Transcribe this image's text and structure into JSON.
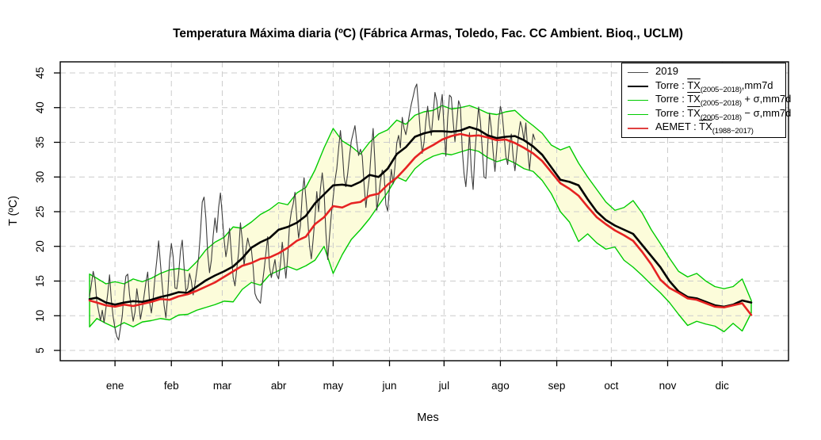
{
  "title": "Temperatura Máxima diaria (ºC) (Fábrica Armas, Toledo, Fac. CC Ambient. Bioq., UCLM)",
  "axes": {
    "x_label": "Mes",
    "y_label": "T (ºC)",
    "x_ticks": [
      "ene",
      "feb",
      "mar",
      "abr",
      "may",
      "jun",
      "jul",
      "ago",
      "sep",
      "oct",
      "nov",
      "dic"
    ],
    "y_ticks": [
      5,
      10,
      15,
      20,
      25,
      30,
      35,
      40,
      45
    ]
  },
  "colors": {
    "band_fill": "#FCFCDA",
    "grid": "#CCCCCC",
    "box": "#000000",
    "green": "#00CC00",
    "red": "#E62222",
    "black": "#000000",
    "gray2019": "#3C3C3C"
  },
  "legend": {
    "entries": [
      {
        "prefix": "",
        "tx": "",
        "sub": "",
        "suffix": "2019",
        "color": "#4d4d4d",
        "width": 1.5
      },
      {
        "prefix": "Torre : ",
        "tx": "TX",
        "sub": "(2005−2018)",
        "suffix": ",mm7d",
        "color": "#000000",
        "width": 2
      },
      {
        "prefix": "Torre : ",
        "tx": "TX",
        "sub": "(2005−2018)",
        "suffix": " + σ,mm7d",
        "color": "#00CC00",
        "width": 1.5
      },
      {
        "prefix": "Torre : ",
        "tx": "TX",
        "sub": "(2005−2018)",
        "suffix": " − σ,mm7d",
        "color": "#00CC00",
        "width": 1.5
      },
      {
        "prefix": "AEMET : ",
        "tx": "TX",
        "sub": "(1988−2017)",
        "suffix": "",
        "color": "#E04040",
        "width": 2
      }
    ]
  },
  "chart_data": {
    "type": "line",
    "title": "Temperatura Máxima diaria (ºC) (Fábrica Armas, Toledo, Fac. CC Ambient. Bioq., UCLM)",
    "xlabel": "Mes",
    "ylabel": "T (ºC)",
    "x_unit": "day_of_year",
    "xlim": [
      1,
      365
    ],
    "ylim": [
      5,
      45
    ],
    "grid": true,
    "legend_position": "top-right",
    "month_labels": [
      "ene",
      "feb",
      "mar",
      "abr",
      "may",
      "jun",
      "jul",
      "ago",
      "sep",
      "oct",
      "nov",
      "dic"
    ],
    "band": {
      "upper_id": "sigma_upper",
      "lower_id": "sigma_lower",
      "fill": "#FCFCDA"
    },
    "series": [
      {
        "id": "sigma_upper",
        "name": "Torre TX(2005-2018) + sigma, mm7d",
        "color": "#00CC00",
        "width": 1.4,
        "days": [
          1,
          5,
          10,
          15,
          20,
          25,
          30,
          35,
          40,
          45,
          50,
          55,
          60,
          65,
          70,
          75,
          80,
          85,
          90,
          95,
          100,
          105,
          110,
          115,
          120,
          125,
          130,
          135,
          140,
          145,
          150,
          155,
          160,
          165,
          170,
          175,
          180,
          185,
          190,
          195,
          200,
          205,
          210,
          215,
          220,
          225,
          230,
          235,
          240,
          245,
          250,
          255,
          260,
          265,
          270,
          275,
          280,
          285,
          290,
          295,
          300,
          305,
          310,
          315,
          320,
          325,
          330,
          335,
          340,
          345,
          350,
          355,
          360,
          365
        ],
        "values": [
          16.0,
          15.4,
          14.6,
          14.9,
          14.6,
          15.3,
          14.9,
          15.4,
          16.1,
          16.6,
          16.8,
          16.5,
          17.8,
          19.5,
          20.6,
          21.3,
          22.8,
          22.6,
          23.5,
          24.6,
          25.3,
          26.3,
          26.0,
          27.7,
          28.5,
          31.0,
          34.2,
          37.0,
          35.2,
          34.4,
          33.3,
          35.0,
          36.2,
          36.8,
          38.2,
          37.6,
          38.9,
          39.4,
          39.6,
          40.3,
          39.8,
          40.0,
          40.3,
          39.8,
          39.2,
          39.0,
          39.4,
          39.6,
          38.4,
          37.4,
          36.3,
          34.6,
          33.9,
          34.4,
          32.0,
          30.0,
          28.2,
          26.4,
          25.2,
          25.6,
          26.6,
          24.8,
          22.4,
          20.4,
          18.3,
          16.4,
          15.6,
          16.1,
          15.0,
          14.2,
          13.9,
          14.2,
          15.3,
          12.2
        ]
      },
      {
        "id": "sigma_lower",
        "name": "Torre TX(2005-2018) − sigma, mm7d",
        "color": "#00CC00",
        "width": 1.4,
        "days": [
          1,
          5,
          10,
          15,
          20,
          25,
          30,
          35,
          40,
          45,
          50,
          55,
          60,
          65,
          70,
          75,
          80,
          85,
          90,
          95,
          100,
          105,
          110,
          115,
          120,
          125,
          130,
          135,
          140,
          145,
          150,
          155,
          160,
          165,
          170,
          175,
          180,
          185,
          190,
          195,
          200,
          205,
          210,
          215,
          220,
          225,
          230,
          235,
          240,
          245,
          250,
          255,
          260,
          265,
          270,
          275,
          280,
          285,
          290,
          295,
          300,
          305,
          310,
          315,
          320,
          325,
          330,
          335,
          340,
          345,
          350,
          355,
          360,
          365
        ],
        "values": [
          8.4,
          9.6,
          8.9,
          8.3,
          9.0,
          8.4,
          9.1,
          9.3,
          9.6,
          9.4,
          10.1,
          10.2,
          10.8,
          11.2,
          11.6,
          12.1,
          12.0,
          13.8,
          14.8,
          14.4,
          15.9,
          16.5,
          17.1,
          16.6,
          17.2,
          18.0,
          20.0,
          16.1,
          18.8,
          21.0,
          22.4,
          24.0,
          25.9,
          27.8,
          30.0,
          29.4,
          31.2,
          32.3,
          33.0,
          33.4,
          33.2,
          33.6,
          34.0,
          33.7,
          32.8,
          32.2,
          32.6,
          32.0,
          31.2,
          30.8,
          29.5,
          27.6,
          25.0,
          23.5,
          20.7,
          21.8,
          20.5,
          19.6,
          19.9,
          18.0,
          17.0,
          15.8,
          14.5,
          13.3,
          11.9,
          10.2,
          8.6,
          9.2,
          8.8,
          8.5,
          7.7,
          8.9,
          7.8,
          10.4
        ]
      },
      {
        "id": "y2019",
        "name": "2019",
        "color": "#3C3C3C",
        "width": 1.1,
        "days": [
          1,
          2,
          3,
          4,
          5,
          7,
          8,
          9,
          11,
          12,
          13,
          14,
          15,
          16,
          17,
          19,
          20,
          21,
          22,
          23,
          25,
          26,
          27,
          28,
          29,
          30,
          31,
          32,
          33,
          34,
          35,
          36,
          37,
          38,
          39,
          40,
          41,
          42,
          43,
          44,
          45,
          46,
          47,
          48,
          49,
          50,
          51,
          52,
          53,
          54,
          55,
          56,
          57,
          58,
          59,
          60,
          61,
          62,
          63,
          64,
          65,
          66,
          67,
          68,
          69,
          70,
          71,
          72,
          73,
          74,
          75,
          76,
          77,
          78,
          79,
          80,
          81,
          82,
          83,
          84,
          85,
          86,
          87,
          88,
          89,
          90,
          91,
          92,
          93,
          95,
          96,
          97,
          98,
          99,
          100,
          101,
          103,
          104,
          105,
          106,
          107,
          108,
          109,
          110,
          111,
          112,
          113,
          114,
          115,
          116,
          117,
          118,
          119,
          120,
          121,
          122,
          123,
          124,
          125,
          126,
          127,
          128,
          129,
          130,
          131,
          132,
          133,
          134,
          135,
          136,
          137,
          138,
          139,
          140,
          141,
          142,
          143,
          144,
          145,
          146,
          147,
          148,
          149,
          150,
          151,
          152,
          153,
          154,
          155,
          156,
          157,
          158,
          159,
          160,
          161,
          162,
          163,
          164,
          165,
          166,
          167,
          168,
          169,
          170,
          171,
          172,
          173,
          174,
          175,
          176,
          177,
          178,
          179,
          180,
          181,
          182,
          183,
          184,
          185,
          186,
          187,
          188,
          189,
          190,
          191,
          192,
          193,
          194,
          195,
          196,
          197,
          198,
          199,
          200,
          201,
          202,
          203,
          204,
          205,
          206,
          207,
          208,
          209,
          210,
          211,
          212,
          213,
          214,
          215,
          216,
          217,
          218,
          219,
          220,
          221,
          222,
          223,
          224,
          225,
          226,
          227,
          228,
          229,
          230,
          231,
          232,
          233,
          234,
          235,
          236,
          237,
          238,
          239,
          240,
          241,
          242,
          243,
          244,
          245,
          246
        ],
        "values": [
          12.8,
          14.5,
          16.4,
          15.2,
          12.0,
          9.3,
          10.8,
          9.0,
          13.2,
          15.9,
          12.2,
          9.8,
          8.2,
          7.0,
          6.5,
          10.0,
          13.5,
          15.7,
          16.0,
          13.0,
          9.2,
          10.5,
          13.9,
          12.0,
          9.5,
          11.0,
          12.9,
          14.8,
          16.3,
          12.0,
          10.4,
          12.5,
          15.6,
          18.0,
          20.8,
          17.5,
          14.3,
          11.5,
          9.7,
          13.0,
          17.9,
          20.4,
          18.5,
          14.0,
          13.9,
          16.0,
          19.3,
          20.9,
          17.0,
          13.5,
          14.0,
          16.1,
          15.0,
          13.0,
          14.6,
          16.5,
          18.4,
          22.0,
          26.4,
          27.1,
          24.0,
          19.0,
          16.2,
          18.0,
          21.5,
          24.1,
          22.0,
          25.6,
          27.7,
          24.5,
          21.0,
          18.5,
          20.1,
          22.6,
          19.0,
          15.5,
          14.3,
          16.8,
          19.1,
          23.4,
          21.0,
          17.2,
          19.5,
          21.2,
          20.0,
          19.6,
          17.0,
          13.2,
          12.5,
          11.8,
          14.5,
          16.6,
          19.0,
          21.4,
          17.0,
          15.5,
          18.1,
          15.9,
          15.3,
          17.5,
          20.6,
          18.0,
          15.4,
          18.5,
          23.1,
          25.0,
          26.1,
          27.8,
          24.0,
          21.2,
          23.0,
          27.5,
          29.9,
          27.0,
          24.0,
          20.1,
          18.2,
          21.0,
          24.2,
          27.9,
          25.0,
          28.3,
          30.6,
          28.0,
          22.0,
          18.1,
          21.5,
          24.6,
          27.0,
          29.5,
          31.2,
          34.1,
          36.7,
          34.0,
          30.0,
          28.6,
          30.5,
          33.0,
          35.2,
          36.3,
          37.4,
          35.0,
          33.1,
          34.0,
          33.0,
          29.0,
          25.6,
          28.0,
          30.1,
          34.0,
          37.0,
          32.0,
          25.2,
          27.0,
          29.4,
          31.0,
          30.4,
          26.0,
          25.1,
          28.5,
          31.1,
          29.0,
          31.5,
          34.9,
          36.0,
          34.2,
          38.6,
          37.0,
          36.1,
          37.5,
          39.1,
          40.5,
          41.6,
          42.8,
          43.4,
          40.0,
          36.2,
          33.4,
          35.0,
          38.1,
          40.2,
          37.5,
          36.0,
          39.0,
          42.2,
          41.0,
          38.2,
          40.0,
          41.9,
          37.0,
          33.0,
          38.5,
          41.8,
          41.5,
          38.0,
          35.1,
          37.9,
          41.0,
          40.2,
          34.0,
          30.5,
          28.6,
          32.0,
          36.4,
          31.0,
          28.2,
          33.5,
          37.0,
          40.1,
          38.0,
          34.1,
          30.0,
          29.8,
          34.5,
          39.2,
          37.0,
          33.6,
          30.8,
          34.0,
          38.1,
          40.2,
          39.0,
          36.1,
          33.0,
          31.8,
          34.6,
          36.2,
          33.0,
          30.9,
          33.5,
          36.1,
          38.0,
          37.0,
          35.2,
          37.8,
          34.0,
          31.0,
          33.9,
          36.2,
          35.4
        ]
      },
      {
        "id": "torre_mean",
        "name": "Torre TX(2005-2018), mm7d",
        "color": "#000000",
        "width": 2.6,
        "days": [
          1,
          5,
          10,
          15,
          20,
          25,
          30,
          35,
          40,
          45,
          50,
          55,
          60,
          65,
          70,
          75,
          80,
          85,
          90,
          95,
          100,
          105,
          110,
          115,
          120,
          125,
          130,
          135,
          140,
          145,
          150,
          155,
          160,
          165,
          170,
          175,
          180,
          185,
          190,
          195,
          200,
          205,
          210,
          215,
          220,
          225,
          230,
          235,
          240,
          245,
          250,
          255,
          260,
          265,
          270,
          275,
          280,
          285,
          290,
          295,
          300,
          305,
          310,
          315,
          320,
          325,
          330,
          335,
          340,
          345,
          350,
          355,
          360,
          365
        ],
        "values": [
          12.4,
          12.6,
          11.9,
          11.6,
          11.9,
          12.1,
          12.0,
          12.3,
          12.7,
          13.0,
          13.4,
          13.3,
          14.2,
          15.1,
          15.8,
          16.4,
          17.1,
          18.3,
          19.8,
          20.6,
          21.2,
          22.4,
          22.8,
          23.4,
          24.4,
          26.2,
          27.5,
          28.8,
          28.9,
          28.7,
          29.3,
          30.3,
          30.0,
          31.2,
          33.3,
          34.3,
          35.8,
          36.3,
          36.6,
          36.6,
          36.5,
          36.7,
          37.2,
          36.8,
          36.0,
          35.6,
          35.8,
          35.9,
          35.3,
          34.4,
          33.2,
          31.4,
          29.6,
          29.3,
          28.8,
          26.8,
          25.0,
          23.8,
          23.0,
          22.4,
          21.8,
          20.2,
          18.6,
          17.0,
          15.0,
          13.5,
          12.7,
          12.5,
          12.0,
          11.5,
          11.3,
          11.6,
          12.2,
          11.9
        ]
      },
      {
        "id": "aemet",
        "name": "AEMET TX(1988-2017)",
        "color": "#E62222",
        "width": 2.6,
        "days": [
          1,
          5,
          10,
          15,
          20,
          25,
          30,
          35,
          40,
          45,
          50,
          55,
          60,
          65,
          70,
          75,
          80,
          85,
          90,
          95,
          100,
          105,
          110,
          115,
          120,
          125,
          130,
          135,
          140,
          145,
          150,
          155,
          160,
          165,
          170,
          175,
          180,
          185,
          190,
          195,
          200,
          205,
          210,
          215,
          220,
          225,
          230,
          235,
          240,
          245,
          250,
          255,
          260,
          265,
          270,
          275,
          280,
          285,
          290,
          295,
          300,
          305,
          310,
          315,
          320,
          325,
          330,
          335,
          340,
          345,
          350,
          355,
          360,
          365
        ],
        "values": [
          12.2,
          11.9,
          11.5,
          11.3,
          11.6,
          11.4,
          11.7,
          12.0,
          12.4,
          12.3,
          12.8,
          13.1,
          13.6,
          14.2,
          14.8,
          15.6,
          16.4,
          17.2,
          17.6,
          18.2,
          18.4,
          19.0,
          19.8,
          20.8,
          21.4,
          23.2,
          24.2,
          25.8,
          25.6,
          26.2,
          26.4,
          27.3,
          27.6,
          28.9,
          29.9,
          31.3,
          32.8,
          33.9,
          34.6,
          35.4,
          35.9,
          36.2,
          35.9,
          36.0,
          35.7,
          35.3,
          35.4,
          34.9,
          34.2,
          33.4,
          32.3,
          30.7,
          29.1,
          28.3,
          27.3,
          25.7,
          24.2,
          23.2,
          22.3,
          21.6,
          20.8,
          19.2,
          17.4,
          15.2,
          14.0,
          13.3,
          12.5,
          12.3,
          11.8,
          11.3,
          11.2,
          11.5,
          11.8,
          10.1
        ]
      }
    ]
  }
}
